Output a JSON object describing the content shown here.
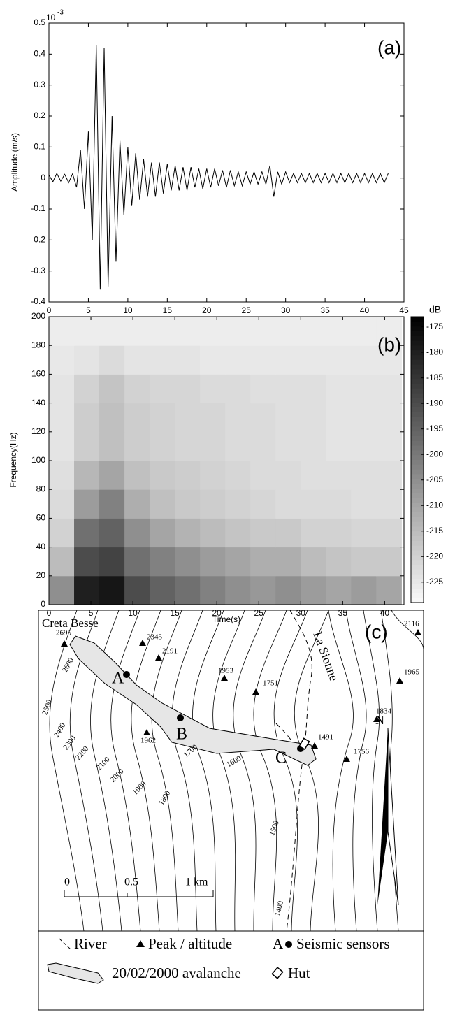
{
  "chart_data": [
    {
      "type": "line",
      "panel_label": "(a)",
      "ylabel": "Amplitude (m/s)",
      "y_multiplier": {
        "base": "10",
        "exponent": "-3"
      },
      "color": "#000000",
      "x": [
        0,
        0.5,
        1,
        1.5,
        2,
        2.5,
        3,
        3.5,
        4,
        4.5,
        5,
        5.5,
        6,
        6.5,
        7,
        7.5,
        8,
        8.5,
        9,
        9.5,
        10,
        10.5,
        11,
        11.5,
        12,
        12.5,
        13,
        13.5,
        14,
        14.5,
        15,
        15.5,
        16,
        16.5,
        17,
        17.5,
        18,
        18.5,
        19,
        19.5,
        20,
        20.5,
        21,
        21.5,
        22,
        22.5,
        23,
        23.5,
        24,
        24.5,
        25,
        25.5,
        26,
        26.5,
        27,
        27.5,
        28,
        28.5,
        29,
        29.5,
        30,
        30.5,
        31,
        31.5,
        32,
        32.5,
        33,
        33.5,
        34,
        34.5,
        35,
        35.5,
        36,
        36.5,
        37,
        37.5,
        38,
        38.5,
        39,
        39.5,
        40,
        40.5,
        41,
        41.5,
        42,
        42.5,
        43
      ],
      "values": [
        0.01,
        -0.012,
        0.015,
        -0.01,
        0.012,
        -0.015,
        0.014,
        -0.03,
        0.09,
        -0.1,
        0.15,
        -0.2,
        0.43,
        -0.36,
        0.42,
        -0.35,
        0.2,
        -0.27,
        0.12,
        -0.12,
        0.1,
        -0.09,
        0.08,
        -0.07,
        0.06,
        -0.06,
        0.05,
        -0.06,
        0.05,
        -0.05,
        0.045,
        -0.04,
        0.04,
        -0.04,
        0.035,
        -0.04,
        0.035,
        -0.03,
        0.03,
        -0.035,
        0.03,
        -0.03,
        0.03,
        -0.025,
        0.025,
        -0.03,
        0.025,
        -0.025,
        0.02,
        -0.025,
        0.02,
        -0.02,
        0.02,
        -0.02,
        0.02,
        -0.02,
        0.04,
        -0.06,
        0.02,
        -0.02,
        0.02,
        -0.015,
        0.015,
        -0.015,
        0.015,
        -0.015,
        0.015,
        -0.015,
        0.015,
        -0.015,
        0.015,
        -0.015,
        0.015,
        -0.015,
        0.015,
        -0.015,
        0.015,
        -0.015,
        0.015,
        -0.015,
        0.015,
        -0.015,
        0.015,
        -0.015,
        0.015,
        -0.015,
        0.015
      ],
      "xlim": [
        0,
        45
      ],
      "xticks": [
        0,
        5,
        10,
        15,
        20,
        25,
        30,
        35,
        40,
        45
      ],
      "ylim": [
        -0.4,
        0.5
      ],
      "yticks": [
        -0.4,
        -0.3,
        -0.2,
        -0.1,
        0,
        0.1,
        0.2,
        0.3,
        0.4,
        0.5
      ]
    },
    {
      "type": "heatmap",
      "panel_label": "(b)",
      "xlabel": "Time(s)",
      "ylabel": "Frequency(Hz)",
      "colorbar_label": "dB",
      "time_bins": [
        0,
        3,
        6,
        9,
        12,
        15,
        18,
        21,
        24,
        27,
        30,
        33,
        36,
        39,
        42
      ],
      "freq_bins": [
        0,
        20,
        40,
        60,
        80,
        100,
        120,
        140,
        160,
        180,
        200
      ],
      "z": [
        [
          -205,
          -180,
          -178,
          -190,
          -195,
          -198,
          -202,
          -205,
          -207,
          -205,
          -208,
          -210,
          -208,
          -210
        ],
        [
          -215,
          -190,
          -188,
          -198,
          -202,
          -205,
          -208,
          -210,
          -212,
          -212,
          -215,
          -217,
          -218,
          -218
        ],
        [
          -220,
          -198,
          -195,
          -205,
          -210,
          -213,
          -215,
          -217,
          -218,
          -218,
          -220,
          -220,
          -221,
          -221
        ],
        [
          -222,
          -208,
          -202,
          -212,
          -216,
          -218,
          -219,
          -220,
          -221,
          -222,
          -222,
          -222,
          -223,
          -223
        ],
        [
          -223,
          -214,
          -210,
          -216,
          -218,
          -219,
          -220,
          -221,
          -222,
          -222,
          -223,
          -223,
          -223,
          -223
        ],
        [
          -224,
          -219,
          -216,
          -219,
          -220,
          -221,
          -221,
          -222,
          -222,
          -223,
          -223,
          -224,
          -224,
          -224
        ],
        [
          -224,
          -219,
          -216,
          -219,
          -220,
          -221,
          -221,
          -222,
          -222,
          -223,
          -223,
          -224,
          -224,
          -224
        ],
        [
          -224,
          -220,
          -217,
          -220,
          -221,
          -221,
          -222,
          -222,
          -223,
          -223,
          -223,
          -224,
          -224,
          -224
        ],
        [
          -225,
          -224,
          -222,
          -224,
          -224,
          -224,
          -225,
          -225,
          -225,
          -225,
          -225,
          -225,
          -225,
          -225
        ],
        [
          -226,
          -226,
          -226,
          -226,
          -226,
          -226,
          -226,
          -226,
          -226,
          -226,
          -226,
          -226,
          -226,
          -226
        ]
      ],
      "xlim": [
        0,
        42.3
      ],
      "xticks": [
        0,
        5,
        10,
        15,
        20,
        25,
        30,
        35,
        40
      ],
      "ylim": [
        0,
        200
      ],
      "yticks": [
        0,
        20,
        40,
        60,
        80,
        100,
        120,
        140,
        160,
        180,
        200
      ],
      "zlim": [
        -229,
        -173
      ],
      "zticks": [
        -175,
        -180,
        -185,
        -190,
        -195,
        -200,
        -205,
        -210,
        -215,
        -220,
        -225
      ]
    }
  ],
  "map": {
    "panel_label": "(c)",
    "places": [
      "Creta Besse",
      "La Sionne"
    ],
    "peaks": [
      "2695",
      "2345",
      "2191",
      "1953",
      "1751",
      "1962",
      "1834",
      "1491",
      "1756",
      "2116",
      "1965"
    ],
    "contours": [
      "2600",
      "2500",
      "2400",
      "2300",
      "2200",
      "2100",
      "2000",
      "1900",
      "1800",
      "1700",
      "1600",
      "1500",
      "1400"
    ],
    "sensors": [
      "A",
      "B",
      "C"
    ],
    "scale": [
      "0",
      "0.5",
      "1 km"
    ],
    "north": "N",
    "legend": [
      "River",
      "Peak / altitude",
      "A",
      "Seismic sensors",
      "20/02/2000 avalanche",
      "Hut"
    ]
  }
}
